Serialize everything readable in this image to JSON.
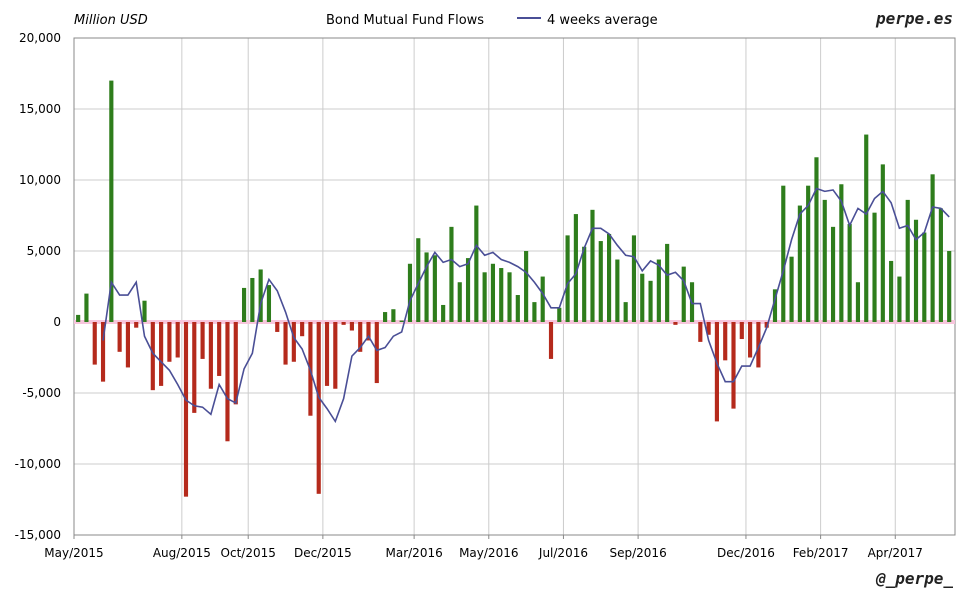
{
  "header": {
    "unit": "Million USD",
    "title": "Bond Mutual Fund Flows",
    "legend_line": "4 weeks average",
    "brand_top": "perpe.es",
    "brand_bottom": "@_perpe_"
  },
  "colors": {
    "positive_bar": "#2e7d1c",
    "negative_bar": "#b52a1c",
    "average_line": "#4a4f96",
    "grid": "#cccccc",
    "zero_band": "#f7c6dc",
    "axis": "#888888"
  },
  "chart_data": {
    "type": "bar",
    "title": "Bond Mutual Fund Flows",
    "ylabel": "Million USD",
    "xlabel": "",
    "ylim": [
      -15000,
      20000
    ],
    "yticks": [
      -15000,
      -10000,
      -5000,
      0,
      5000,
      10000,
      15000,
      20000
    ],
    "ytick_labels": [
      "-15,000",
      "-10,000",
      "-5,000",
      "0",
      "5,000",
      "10,000",
      "15,000",
      "20,000"
    ],
    "xticks": [
      "May/2015",
      "Aug/2015",
      "Oct/2015",
      "Dec/2015",
      "Mar/2016",
      "May/2016",
      "Jul/2016",
      "Sep/2016",
      "Dec/2016",
      "Feb/2017",
      "Apr/2017"
    ],
    "xtick_week_index": [
      0,
      13,
      21,
      30,
      41,
      50,
      59,
      68,
      81,
      90,
      99
    ],
    "grid": true,
    "legend": "top",
    "series": [
      {
        "name": "Bond Mutual Fund Flows",
        "type": "bar",
        "values": [
          500,
          2000,
          -3000,
          -4200,
          17000,
          -2100,
          -3200,
          -400,
          1500,
          -4800,
          -4500,
          -2800,
          -2500,
          -12300,
          -6400,
          -2600,
          -4700,
          -3800,
          -8400,
          -5800,
          2400,
          3100,
          3700,
          2600,
          -700,
          -3000,
          -2800,
          -1000,
          -6600,
          -12100,
          -4500,
          -4700,
          -200,
          -600,
          -2100,
          -1300,
          -4300,
          700,
          900,
          100,
          4100,
          5900,
          4900,
          4700,
          1200,
          6700,
          2800,
          4500,
          8200,
          3500,
          4100,
          3800,
          3500,
          1900,
          5000,
          1400,
          3200,
          -2600,
          1000,
          6100,
          7600,
          5300,
          7900,
          5700,
          6200,
          4400,
          1400,
          6100,
          3400,
          2900,
          4400,
          5500,
          -200,
          3900,
          2800,
          -1400,
          -900,
          -7000,
          -2700,
          -6100,
          -1200,
          -2500,
          -3200,
          -400,
          2300,
          9600,
          4600,
          8200,
          9600,
          11600,
          8600,
          6700,
          9700,
          6900,
          2800,
          13200,
          7700,
          11100,
          4300,
          3200,
          8600,
          7200,
          6300,
          10400,
          8000,
          5000
        ]
      },
      {
        "name": "4 weeks average",
        "type": "line",
        "values": [
          null,
          null,
          null,
          -1300,
          2800,
          1900,
          1900,
          2800,
          -1000,
          -2200,
          -2800,
          -3400,
          -4400,
          -5500,
          -5900,
          -6000,
          -6500,
          -4400,
          -5400,
          -5700,
          -3300,
          -2200,
          1300,
          3000,
          2200,
          700,
          -1100,
          -1900,
          -3400,
          -5300,
          -6100,
          -7000,
          -5400,
          -2400,
          -1800,
          -1000,
          -2000,
          -1800,
          -1000,
          -700,
          1500,
          2700,
          3900,
          4900,
          4200,
          4400,
          3900,
          4100,
          5400,
          4700,
          4900,
          4400,
          4200,
          3900,
          3500,
          2800,
          2000,
          1000,
          1000,
          2700,
          3400,
          5200,
          6600,
          6600,
          6200,
          5400,
          4700,
          4600,
          3600,
          4300,
          4000,
          3300,
          3500,
          2900,
          1300,
          1300,
          -1300,
          -2900,
          -4200,
          -4200,
          -3100,
          -3100,
          -1800,
          -400,
          1600,
          3600,
          5800,
          7600,
          8200,
          9400,
          9200,
          9300,
          8500,
          6800,
          8000,
          7600,
          8700,
          9200,
          8400,
          6600,
          6800,
          5800,
          6300,
          8100,
          8000,
          7400
        ]
      }
    ]
  }
}
